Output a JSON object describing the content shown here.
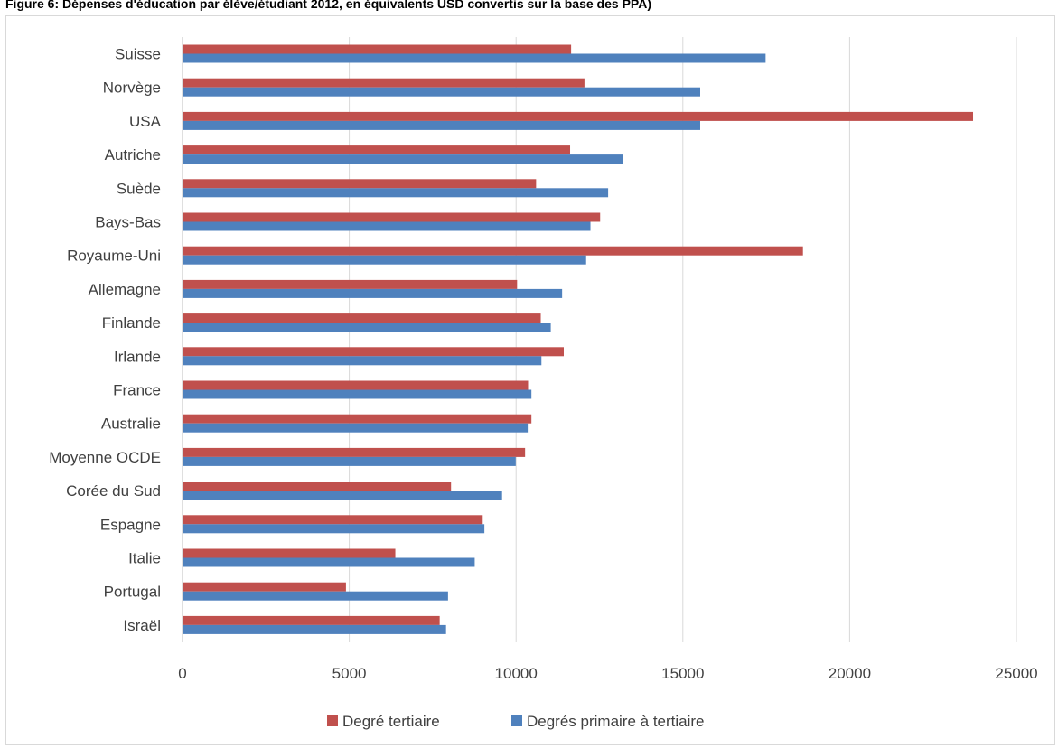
{
  "title": "Figure 6: Dépenses d'éducation par élève/étudiant 2012, en équivalents USD convertis sur la base des PPA)",
  "colors": {
    "tertiary": "#c0504d",
    "primary_tertiary": "#4f81bd",
    "grid": "#d9d9d9",
    "axis": "#bfbfbf"
  },
  "chart_data": {
    "type": "bar",
    "orientation": "horizontal",
    "title": "Figure 6: Dépenses d'éducation par élève/étudiant 2012, en équivalents USD convertis sur la base des PPA)",
    "categories": [
      "Suisse",
      "Norvège",
      "USA",
      "Autriche",
      "Suède",
      "Bays-Bas",
      "Royaume-Uni",
      "Allemagne",
      "Finlande",
      "Irlande",
      "France",
      "Australie",
      "Moyenne OCDE",
      "Corée du Sud",
      "Espagne",
      "Italie",
      "Portugal",
      "Israël"
    ],
    "series": [
      {
        "name": "Degré tertiaire",
        "color": "#c0504d",
        "values": [
          11650,
          12050,
          23700,
          11620,
          10600,
          12520,
          18600,
          10030,
          10740,
          11430,
          10360,
          10460,
          10270,
          8050,
          9000,
          6380,
          4900,
          7710
        ]
      },
      {
        "name": "Degrés primaire à tertiaire",
        "color": "#4f81bd",
        "values": [
          17480,
          15520,
          15520,
          13200,
          12760,
          12230,
          12100,
          11380,
          11040,
          10760,
          10460,
          10350,
          9990,
          9580,
          9050,
          8760,
          7960,
          7900
        ]
      }
    ],
    "xlim": [
      0,
      25000
    ],
    "xticks": [
      0,
      5000,
      10000,
      15000,
      20000,
      25000
    ],
    "grid": true,
    "legend_position": "bottom",
    "xlabel": "",
    "ylabel": ""
  }
}
